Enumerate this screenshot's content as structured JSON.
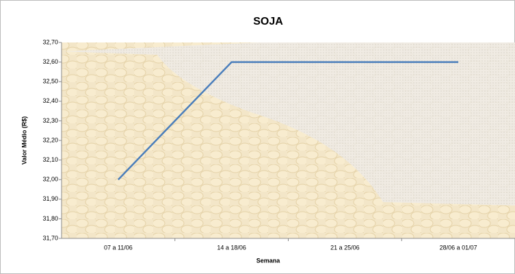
{
  "chart_data": {
    "type": "line",
    "title": "SOJA",
    "x_label": "Semana",
    "y_label": "Valor Médio (R$)",
    "categories": [
      "07 a 11/06",
      "14 a 18/06",
      "21 a 25/06",
      "28/06 a 01/07"
    ],
    "values": [
      32.0,
      32.6,
      32.6,
      32.6
    ],
    "color": "#4a7ebb",
    "ylim": [
      31.7,
      32.7
    ],
    "yticks": [
      {
        "value": 31.7,
        "label": "31,70"
      },
      {
        "value": 31.8,
        "label": "31,80"
      },
      {
        "value": 31.9,
        "label": "31,90"
      },
      {
        "value": 32.0,
        "label": "32,00"
      },
      {
        "value": 32.1,
        "label": "32,10"
      },
      {
        "value": 32.2,
        "label": "32,20"
      },
      {
        "value": 32.3,
        "label": "32,30"
      },
      {
        "value": 32.4,
        "label": "32,40"
      },
      {
        "value": 32.5,
        "label": "32,50"
      },
      {
        "value": 32.6,
        "label": "32,60"
      },
      {
        "value": 32.7,
        "label": "32,70"
      }
    ],
    "grid": false
  }
}
